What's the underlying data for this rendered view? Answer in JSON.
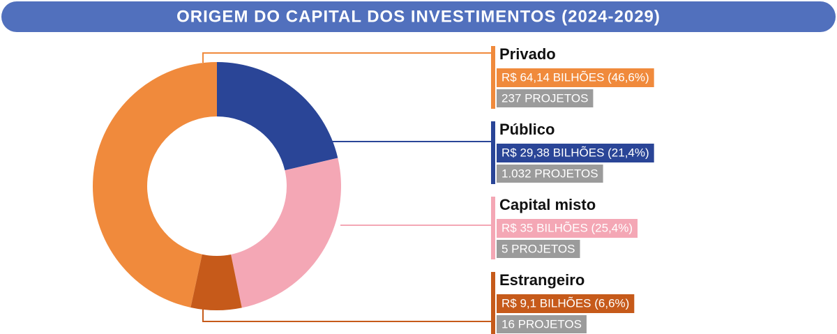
{
  "chart_data": {
    "type": "donut",
    "title": "ORIGEM DO CAPITAL DOS INVESTIMENTOS (2024-2029)",
    "categories": [
      "Privado",
      "Público",
      "Capital misto",
      "Estrangeiro"
    ],
    "values": [
      64.14,
      29.38,
      35,
      9.1
    ],
    "value_labels": [
      "R$ 64,14 BILHÕES (46,6%)",
      "R$ 29,38 BILHÕES (21,4%)",
      "R$ 35 BILHÕES (25,4%)",
      "R$ 9,1 BILHÕES (6,6%)"
    ],
    "project_labels": [
      "237 PROJETOS",
      "1.032 PROJETOS",
      "5 PROJETOS",
      "16 PROJETOS"
    ],
    "colors": [
      "#f08a3c",
      "#2a4597",
      "#f4a7b5",
      "#c65a1a"
    ]
  }
}
